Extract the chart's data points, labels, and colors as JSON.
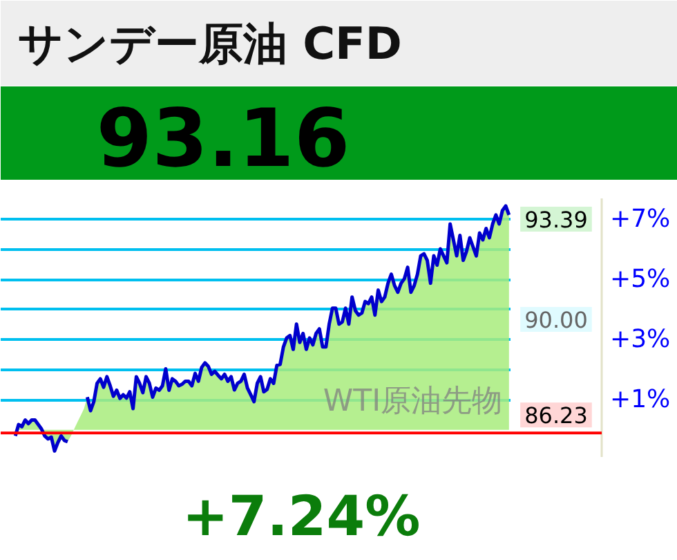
{
  "chart_data": {
    "type": "area",
    "title": "サンデー原油 CFD",
    "subtitle": "93.16",
    "categories": [
      null,
      null,
      null,
      null,
      null,
      null,
      null,
      null,
      null,
      null,
      null,
      null,
      null,
      null,
      null,
      null,
      null,
      null,
      null,
      null,
      null,
      null,
      null,
      null,
      null,
      null,
      null,
      null,
      null,
      null,
      null,
      null,
      null,
      null,
      null,
      null,
      null,
      null,
      null,
      null,
      null,
      null,
      null,
      null,
      null,
      null,
      null,
      null,
      null,
      null,
      null,
      null,
      null,
      null,
      null,
      null,
      null,
      null,
      null,
      null,
      null,
      null,
      null,
      null,
      null,
      null,
      null,
      null,
      null,
      null,
      null,
      null,
      null,
      null,
      null,
      null,
      null,
      null,
      null,
      null,
      null,
      null,
      null,
      null,
      null,
      null,
      null,
      null,
      null,
      null,
      null,
      null,
      null,
      null,
      null,
      null,
      null,
      null,
      null,
      null,
      null,
      null,
      null,
      null,
      null,
      null,
      null,
      null,
      null,
      null,
      null,
      null,
      null,
      null,
      null,
      null,
      null,
      null,
      null,
      null,
      null,
      null,
      null,
      null,
      null,
      null,
      null,
      null,
      null,
      null,
      null,
      null,
      null,
      null,
      null,
      null,
      null,
      null,
      null,
      null,
      null,
      null,
      null,
      null,
      null,
      null,
      null,
      null,
      null,
      null,
      null,
      null
    ],
    "series": [
      {
        "color": "#a8ec7c",
        "values": [
          -0.2,
          0.18,
          0.11,
          0.33,
          0.21,
          0.33,
          0.33,
          0.18,
          0.03,
          -0.2,
          -0.3,
          -0.24,
          -0.7,
          -0.42,
          -0.2,
          -0.35,
          -0.39,
          -0.2,
          0.03,
          0.26,
          0.48,
          0.71,
          1.09,
          0.64,
          0.94,
          1.55,
          1.7,
          1.42,
          1.77,
          1.47,
          1.12,
          1.32,
          1.05,
          1.17,
          1.06,
          1.27,
          0.71,
          1.77,
          1.55,
          1.24,
          1.77,
          1.55,
          1.09,
          1.39,
          1.32,
          1.47,
          2.03,
          1.32,
          1.7,
          1.62,
          1.47,
          1.52,
          1.62,
          1.62,
          1.47,
          1.88,
          1.62,
          2.08,
          2.23,
          2.12,
          1.85,
          1.95,
          1.82,
          1.7,
          1.85,
          1.62,
          1.77,
          1.33,
          1.55,
          1.62,
          1.85,
          1.39,
          1.17,
          0.94,
          1.55,
          1.77,
          1.27,
          1.35,
          1.7,
          1.55,
          2.15,
          2.18,
          2.76,
          3.06,
          3.14,
          2.68,
          3.52,
          2.91,
          3.21,
          2.68,
          3.06,
          2.83,
          3.21,
          3.36,
          2.76,
          2.76,
          3.52,
          4.05,
          4.05,
          3.52,
          3.59,
          4.05,
          3.52,
          4.42,
          3.97,
          3.82,
          3.89,
          4.27,
          4.2,
          4.42,
          3.82,
          4.65,
          4.27,
          4.42,
          4.88,
          5.18,
          4.8,
          4.58,
          4.88,
          5.03,
          5.41,
          4.58,
          4.8,
          5.18,
          5.79,
          5.86,
          5.64,
          4.88,
          5.79,
          5.48,
          6.02,
          5.79,
          5.56,
          6.85,
          6.32,
          5.79,
          6.47,
          5.64,
          5.94,
          6.39,
          6.09,
          5.79,
          6.55,
          6.32,
          6.7,
          6.39,
          6.85,
          7.15,
          6.85,
          7.3,
          7.45,
          7.15
        ]
      },
      {
        "type": "line",
        "color": "#0000cc",
        "values": [
          -0.2,
          0.18,
          0.11,
          0.33,
          0.21,
          0.33,
          0.33,
          0.18,
          0.03,
          -0.2,
          -0.3,
          -0.24,
          -0.7,
          -0.42,
          -0.2,
          -0.35,
          -0.39,
          null,
          null,
          null,
          null,
          null,
          1.09,
          0.64,
          0.94,
          1.55,
          1.7,
          1.42,
          1.77,
          1.47,
          1.12,
          1.32,
          1.05,
          1.17,
          1.06,
          1.27,
          0.71,
          1.77,
          1.55,
          1.24,
          1.77,
          1.55,
          1.09,
          1.39,
          1.32,
          1.47,
          2.03,
          1.32,
          1.7,
          1.62,
          1.47,
          1.52,
          1.62,
          1.62,
          1.47,
          1.88,
          1.62,
          2.08,
          2.23,
          2.12,
          1.85,
          1.95,
          1.82,
          1.7,
          1.85,
          1.62,
          1.77,
          1.33,
          1.55,
          1.62,
          1.85,
          1.39,
          1.17,
          0.94,
          1.55,
          1.77,
          1.27,
          1.35,
          1.7,
          1.55,
          2.15,
          2.18,
          2.76,
          3.06,
          3.14,
          2.68,
          3.52,
          2.91,
          3.21,
          2.68,
          3.06,
          2.83,
          3.21,
          3.36,
          2.76,
          2.76,
          3.52,
          4.05,
          4.05,
          3.52,
          3.59,
          4.05,
          3.52,
          4.42,
          3.97,
          3.82,
          3.89,
          4.27,
          4.2,
          4.42,
          3.82,
          4.65,
          4.27,
          4.42,
          4.88,
          5.18,
          4.8,
          4.58,
          4.88,
          5.03,
          5.41,
          4.58,
          4.8,
          5.18,
          5.79,
          5.86,
          5.64,
          4.88,
          5.79,
          5.48,
          6.02,
          5.79,
          5.56,
          6.85,
          6.32,
          5.79,
          6.47,
          5.64,
          5.94,
          6.39,
          6.09,
          5.79,
          6.55,
          6.32,
          6.7,
          6.39,
          6.85,
          7.15,
          6.85,
          7.3,
          7.45,
          7.15
        ]
      }
    ],
    "ylim": [
      -0.9,
      7.7
    ],
    "yticks": [
      {
        "value": 1,
        "label": "+1%"
      },
      {
        "value": 2,
        "label": null
      },
      {
        "value": 3,
        "label": "+3%"
      },
      {
        "value": 4,
        "label": null
      },
      {
        "value": 5,
        "label": "+5%"
      },
      {
        "value": 6,
        "label": null
      },
      {
        "value": 7,
        "label": "+7%"
      }
    ],
    "grid": "y",
    "tick_labels": "y",
    "ref_lines": [
      {
        "axis": "y",
        "value": -0.1,
        "color": "#ff0000"
      }
    ],
    "annotations": [
      "WTI原油先物",
      "+7.24%",
      "93.39",
      "90.00",
      {
        "text": "86.23",
        "y": -0.1
      }
    ]
  }
}
